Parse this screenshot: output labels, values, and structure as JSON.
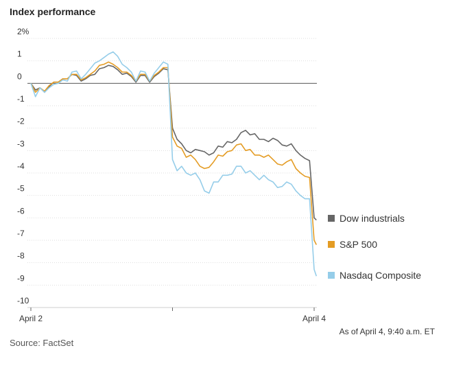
{
  "chart_data": {
    "type": "line",
    "title": "Index performance",
    "x": [
      0,
      1,
      2,
      3,
      4,
      5,
      6,
      7,
      8,
      9,
      10,
      11,
      12,
      13,
      14,
      15,
      16,
      17,
      18,
      19,
      20,
      21,
      22,
      23,
      24,
      25,
      26,
      27,
      28,
      29,
      30,
      31,
      32,
      33,
      34,
      35,
      36,
      37,
      38,
      39,
      40,
      41,
      42,
      43,
      44,
      45,
      46,
      47,
      48,
      49,
      50,
      51,
      52,
      53,
      54,
      55,
      56,
      57,
      58,
      59,
      60,
      61,
      62,
      62.5
    ],
    "series": [
      {
        "name": "Dow industrials",
        "color": "#666666",
        "values": [
          0,
          -0.3,
          -0.2,
          -0.4,
          -0.15,
          0.05,
          0.05,
          0.2,
          0.2,
          0.4,
          0.35,
          0.1,
          0.2,
          0.35,
          0.4,
          0.65,
          0.7,
          0.8,
          0.75,
          0.6,
          0.4,
          0.45,
          0.3,
          0.05,
          0.35,
          0.35,
          0.05,
          0.3,
          0.45,
          0.65,
          0.6,
          -2.0,
          -2.5,
          -2.7,
          -3.0,
          -3.1,
          -2.95,
          -3.0,
          -3.05,
          -3.2,
          -3.1,
          -2.8,
          -2.85,
          -2.6,
          -2.65,
          -2.5,
          -2.2,
          -2.1,
          -2.3,
          -2.25,
          -2.5,
          -2.5,
          -2.6,
          -2.45,
          -2.55,
          -2.75,
          -2.8,
          -2.7,
          -3.0,
          -3.2,
          -3.35,
          -3.45,
          -6.0,
          -6.1
        ]
      },
      {
        "name": "S&P 500",
        "color": "#e49c24",
        "values": [
          0,
          -0.4,
          -0.2,
          -0.35,
          -0.1,
          0.05,
          0.05,
          0.2,
          0.2,
          0.4,
          0.4,
          0.15,
          0.25,
          0.4,
          0.55,
          0.8,
          0.85,
          0.95,
          0.85,
          0.7,
          0.5,
          0.5,
          0.35,
          0.1,
          0.4,
          0.4,
          0.1,
          0.35,
          0.5,
          0.7,
          0.7,
          -2.4,
          -2.8,
          -2.9,
          -3.3,
          -3.2,
          -3.4,
          -3.7,
          -3.8,
          -3.75,
          -3.5,
          -3.2,
          -3.25,
          -3.05,
          -3.0,
          -2.75,
          -2.7,
          -3.0,
          -2.95,
          -3.2,
          -3.2,
          -3.3,
          -3.2,
          -3.4,
          -3.6,
          -3.65,
          -3.5,
          -3.4,
          -3.8,
          -4.0,
          -4.15,
          -4.2,
          -7.0,
          -7.2
        ]
      },
      {
        "name": "Nasdaq Composite",
        "color": "#95cde9",
        "values": [
          0,
          -0.6,
          -0.2,
          -0.4,
          -0.2,
          -0.05,
          0,
          0.15,
          0.1,
          0.5,
          0.55,
          0.2,
          0.4,
          0.65,
          0.9,
          1.0,
          1.15,
          1.3,
          1.4,
          1.2,
          0.85,
          0.7,
          0.5,
          0.1,
          0.55,
          0.5,
          0.1,
          0.45,
          0.7,
          0.95,
          0.85,
          -3.4,
          -3.9,
          -3.7,
          -4.0,
          -4.1,
          -4.0,
          -4.3,
          -4.8,
          -4.9,
          -4.4,
          -4.4,
          -4.1,
          -4.1,
          -4.05,
          -3.7,
          -3.7,
          -4.0,
          -3.9,
          -4.1,
          -4.3,
          -4.1,
          -4.3,
          -4.4,
          -4.65,
          -4.6,
          -4.4,
          -4.5,
          -4.8,
          -5.0,
          -5.15,
          -5.15,
          -8.3,
          -8.6
        ]
      }
    ],
    "xlim": [
      -0.75,
      62.6
    ],
    "xticks": [
      {
        "value": 0,
        "label": "April 2"
      },
      {
        "value": 31,
        "label": null
      },
      {
        "value": 62,
        "label": "April 4"
      }
    ],
    "ylim": [
      -10,
      2
    ],
    "yticks": [
      {
        "value": 2,
        "label": "2%"
      },
      1,
      0,
      -1,
      -2,
      -3,
      -4,
      -5,
      -6,
      -7,
      -8,
      -9,
      -10
    ],
    "grid": true,
    "annotation": "As of April 4, 9:40 a.m. ET",
    "source": "Source: FactSet"
  }
}
